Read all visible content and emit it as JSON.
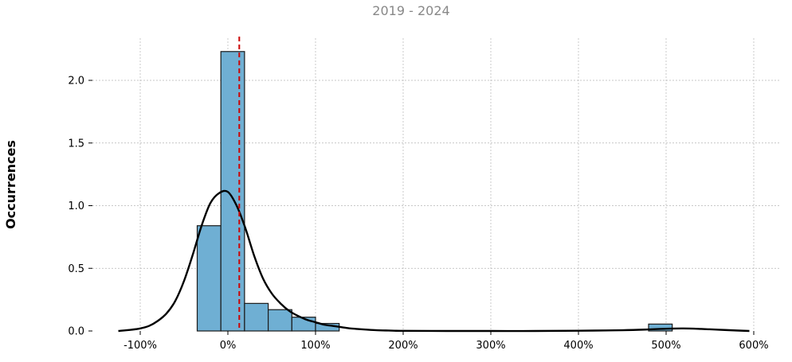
{
  "chart_data": {
    "type": "bar",
    "subtitle": "2019 - 2024",
    "ylabel": "Occurrences",
    "xlabel": "",
    "xlim": [
      -135,
      600
    ],
    "ylim": [
      0,
      2.3
    ],
    "x_ticks": [
      -100,
      0,
      100,
      200,
      300,
      400,
      500,
      600
    ],
    "x_tick_labels": [
      "-100%",
      "0%",
      "100%",
      "200%",
      "300%",
      "400%",
      "500%",
      "600%"
    ],
    "y_ticks": [
      0,
      0.5,
      1.0,
      1.5,
      2.0
    ],
    "y_tick_labels": [
      "0.0",
      "0.5",
      "1.0",
      "1.5",
      "2.0"
    ],
    "grid": true,
    "bins": [
      {
        "x0": -35,
        "x1": -8,
        "value": 0.84
      },
      {
        "x0": -8,
        "x1": 19,
        "value": 2.23
      },
      {
        "x0": 19,
        "x1": 46,
        "value": 0.22
      },
      {
        "x0": 46,
        "x1": 73,
        "value": 0.17
      },
      {
        "x0": 73,
        "x1": 100,
        "value": 0.11
      },
      {
        "x0": 100,
        "x1": 127,
        "value": 0.06
      },
      {
        "x0": 480,
        "x1": 507,
        "value": 0.055
      }
    ],
    "kde": {
      "x": [
        -125,
        -110,
        -100,
        -90,
        -80,
        -70,
        -60,
        -50,
        -40,
        -30,
        -20,
        -10,
        0,
        10,
        20,
        30,
        40,
        50,
        60,
        70,
        80,
        90,
        100,
        110,
        120,
        130,
        140,
        150,
        160,
        170,
        180,
        190,
        200,
        250,
        300,
        350,
        400,
        450,
        480,
        500,
        520,
        540,
        560,
        580,
        595
      ],
      "y": [
        0.0,
        0.01,
        0.02,
        0.04,
        0.08,
        0.14,
        0.24,
        0.4,
        0.61,
        0.84,
        1.02,
        1.1,
        1.11,
        1.0,
        0.82,
        0.6,
        0.42,
        0.3,
        0.22,
        0.16,
        0.12,
        0.09,
        0.07,
        0.05,
        0.04,
        0.03,
        0.02,
        0.015,
        0.01,
        0.006,
        0.004,
        0.002,
        0.001,
        0.0,
        0.0,
        0.0,
        0.002,
        0.006,
        0.012,
        0.018,
        0.02,
        0.016,
        0.01,
        0.004,
        0.0
      ]
    },
    "mean_line": {
      "x": 13
    },
    "colors": {
      "bar_fill": "#6fafd3",
      "bar_edge": "#1a1a1a",
      "kde": "#000000",
      "mean_line": "#cc0000",
      "grid": "#b5b5b5"
    }
  }
}
